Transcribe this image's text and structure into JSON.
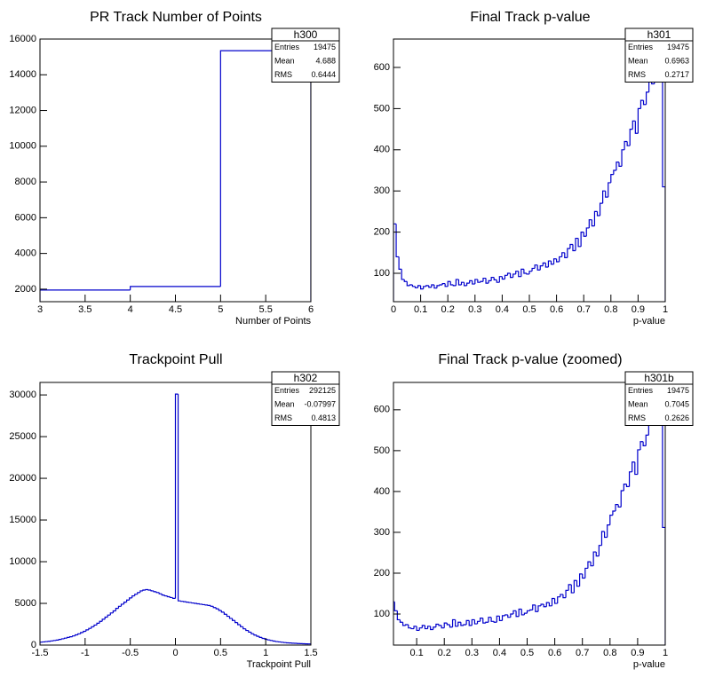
{
  "chart_data": [
    {
      "type": "histogram",
      "title": "PR Track Number of Points",
      "x_label": "Number of Points",
      "color": "#0000cc",
      "bins": [
        3,
        4,
        5,
        6
      ],
      "values": [
        1950,
        2150,
        15350
      ],
      "xlim": [
        3,
        6
      ],
      "xticks": [
        3,
        3.5,
        4,
        4.5,
        5,
        5.5,
        6
      ],
      "ylim": [
        1300,
        16000
      ],
      "yticks": [
        2000,
        4000,
        6000,
        8000,
        10000,
        12000,
        14000,
        16000
      ],
      "stats": {
        "title": "h300",
        "rows": [
          {
            "label": "Entries",
            "value": 19475
          },
          {
            "label": "Mean",
            "value": 4.688
          },
          {
            "label": "RMS",
            "value": 0.6444
          }
        ]
      }
    },
    {
      "type": "histogram",
      "title": "Final Track p-value",
      "x_label": "p-value",
      "color": "#0000cc",
      "bins": [
        0,
        0.01,
        0.02,
        0.03,
        0.04,
        0.05,
        0.06,
        0.07,
        0.08,
        0.09,
        0.1,
        0.11,
        0.12,
        0.13,
        0.14,
        0.15,
        0.16,
        0.17,
        0.18,
        0.19,
        0.2,
        0.21,
        0.22,
        0.23,
        0.24,
        0.25,
        0.26,
        0.27,
        0.28,
        0.29,
        0.3,
        0.31,
        0.32,
        0.33,
        0.34,
        0.35,
        0.36,
        0.37,
        0.38,
        0.39,
        0.4,
        0.41,
        0.42,
        0.43,
        0.44,
        0.45,
        0.46,
        0.47,
        0.48,
        0.49,
        0.5,
        0.51,
        0.52,
        0.53,
        0.54,
        0.55,
        0.56,
        0.57,
        0.58,
        0.59,
        0.6,
        0.61,
        0.62,
        0.63,
        0.64,
        0.65,
        0.66,
        0.67,
        0.68,
        0.69,
        0.7,
        0.71,
        0.72,
        0.73,
        0.74,
        0.75,
        0.76,
        0.77,
        0.78,
        0.79,
        0.8,
        0.81,
        0.82,
        0.83,
        0.84,
        0.85,
        0.86,
        0.87,
        0.88,
        0.89,
        0.9,
        0.91,
        0.92,
        0.93,
        0.94,
        0.95,
        0.96,
        0.97,
        0.98,
        0.99,
        1
      ],
      "values": [
        220,
        140,
        110,
        85,
        80,
        70,
        72,
        68,
        65,
        70,
        62,
        68,
        70,
        66,
        72,
        64,
        70,
        72,
        75,
        68,
        80,
        72,
        70,
        85,
        72,
        78,
        70,
        76,
        82,
        74,
        85,
        78,
        80,
        88,
        76,
        82,
        90,
        84,
        78,
        92,
        86,
        95,
        100,
        90,
        98,
        105,
        92,
        110,
        100,
        98,
        105,
        112,
        120,
        108,
        118,
        125,
        115,
        130,
        122,
        135,
        128,
        140,
        150,
        138,
        160,
        170,
        155,
        185,
        165,
        200,
        190,
        210,
        230,
        215,
        250,
        240,
        270,
        300,
        285,
        320,
        340,
        350,
        370,
        360,
        400,
        420,
        410,
        450,
        470,
        440,
        500,
        520,
        510,
        540,
        580,
        560,
        610,
        640,
        590,
        310
      ],
      "xlim": [
        0,
        1
      ],
      "xticks": [
        0,
        0.1,
        0.2,
        0.3,
        0.4,
        0.5,
        0.6,
        0.7,
        0.8,
        0.9,
        1
      ],
      "ylim": [
        31,
        669
      ],
      "yticks": [
        100,
        200,
        300,
        400,
        500,
        600
      ],
      "stats": {
        "title": "h301",
        "rows": [
          {
            "label": "Entries",
            "value": 19475
          },
          {
            "label": "Mean",
            "value": 0.6963
          },
          {
            "label": "RMS",
            "value": 0.2717
          }
        ]
      }
    },
    {
      "type": "histogram",
      "title": "Trackpoint Pull",
      "x_label": "Trackpoint Pull",
      "color": "#0000cc",
      "bins": [
        -1.5,
        -1.47,
        -1.44,
        -1.41,
        -1.38,
        -1.35,
        -1.32,
        -1.29,
        -1.26,
        -1.23,
        -1.2,
        -1.17,
        -1.14,
        -1.11,
        -1.08,
        -1.05,
        -1.02,
        -0.99,
        -0.96,
        -0.93,
        -0.9,
        -0.87,
        -0.84,
        -0.81,
        -0.78,
        -0.75,
        -0.72,
        -0.69,
        -0.66,
        -0.63,
        -0.6,
        -0.57,
        -0.54,
        -0.51,
        -0.48,
        -0.45,
        -0.42,
        -0.39,
        -0.36,
        -0.33,
        -0.3,
        -0.27,
        -0.24,
        -0.21,
        -0.18,
        -0.15,
        -0.12,
        -0.09,
        -0.06,
        -0.03,
        0,
        0.03,
        0.06,
        0.09,
        0.12,
        0.15,
        0.18,
        0.21,
        0.24,
        0.27,
        0.3,
        0.33,
        0.36,
        0.39,
        0.42,
        0.45,
        0.48,
        0.51,
        0.54,
        0.57,
        0.6,
        0.63,
        0.66,
        0.69,
        0.72,
        0.75,
        0.78,
        0.81,
        0.84,
        0.87,
        0.9,
        0.93,
        0.96,
        0.99,
        1.02,
        1.05,
        1.08,
        1.11,
        1.14,
        1.17,
        1.2,
        1.23,
        1.26,
        1.29,
        1.32,
        1.35,
        1.38,
        1.41,
        1.44,
        1.47,
        1.5
      ],
      "values": [
        350,
        380,
        420,
        450,
        500,
        550,
        600,
        680,
        750,
        830,
        920,
        1000,
        1100,
        1220,
        1350,
        1500,
        1650,
        1820,
        2000,
        2200,
        2400,
        2620,
        2850,
        3100,
        3350,
        3600,
        3850,
        4100,
        4400,
        4650,
        4900,
        5150,
        5400,
        5650,
        5900,
        6100,
        6300,
        6500,
        6600,
        6650,
        6600,
        6500,
        6400,
        6300,
        6150,
        6000,
        5900,
        5800,
        5700,
        5600,
        30100,
        5300,
        5250,
        5200,
        5150,
        5100,
        5050,
        5000,
        4950,
        4900,
        4850,
        4800,
        4750,
        4650,
        4500,
        4350,
        4150,
        3950,
        3700,
        3450,
        3200,
        2950,
        2700,
        2450,
        2200,
        1950,
        1750,
        1550,
        1350,
        1200,
        1050,
        920,
        800,
        700,
        620,
        550,
        480,
        420,
        380,
        340,
        300,
        270,
        250,
        230,
        210,
        190,
        170,
        160,
        150,
        140
      ],
      "xlim": [
        -1.5,
        1.5
      ],
      "xticks": [
        -1.5,
        -1,
        -0.5,
        0,
        0.5,
        1,
        1.5
      ],
      "ylim": [
        0,
        31500
      ],
      "yticks": [
        0,
        5000,
        10000,
        15000,
        20000,
        25000,
        30000
      ],
      "stats": {
        "title": "h302",
        "rows": [
          {
            "label": "Entries",
            "value": 292125
          },
          {
            "label": "Mean",
            "value": -0.07997
          },
          {
            "label": "RMS",
            "value": 0.4813
          }
        ]
      }
    },
    {
      "type": "histogram",
      "title": "Final Track p-value (zoomed)",
      "x_label": "p-value",
      "color": "#0000cc",
      "bins": [
        0.01,
        0.02,
        0.03,
        0.04,
        0.05,
        0.06,
        0.07,
        0.08,
        0.09,
        0.1,
        0.11,
        0.12,
        0.13,
        0.14,
        0.15,
        0.16,
        0.17,
        0.18,
        0.19,
        0.2,
        0.21,
        0.22,
        0.23,
        0.24,
        0.25,
        0.26,
        0.27,
        0.28,
        0.29,
        0.3,
        0.31,
        0.32,
        0.33,
        0.34,
        0.35,
        0.36,
        0.37,
        0.38,
        0.39,
        0.4,
        0.41,
        0.42,
        0.43,
        0.44,
        0.45,
        0.46,
        0.47,
        0.48,
        0.49,
        0.5,
        0.51,
        0.52,
        0.53,
        0.54,
        0.55,
        0.56,
        0.57,
        0.58,
        0.59,
        0.6,
        0.61,
        0.62,
        0.63,
        0.64,
        0.65,
        0.66,
        0.67,
        0.68,
        0.69,
        0.7,
        0.71,
        0.72,
        0.73,
        0.74,
        0.75,
        0.76,
        0.77,
        0.78,
        0.79,
        0.8,
        0.81,
        0.82,
        0.83,
        0.84,
        0.85,
        0.86,
        0.87,
        0.88,
        0.89,
        0.9,
        0.91,
        0.92,
        0.93,
        0.94,
        0.95,
        0.96,
        0.97,
        0.98,
        0.99,
        1
      ],
      "values": [
        130,
        108,
        86,
        80,
        72,
        74,
        66,
        64,
        70,
        60,
        66,
        72,
        64,
        70,
        62,
        68,
        75,
        72,
        66,
        78,
        74,
        68,
        86,
        70,
        80,
        72,
        74,
        84,
        72,
        86,
        76,
        82,
        90,
        78,
        80,
        92,
        82,
        80,
        95,
        84,
        96,
        98,
        92,
        100,
        108,
        94,
        112,
        98,
        102,
        108,
        110,
        122,
        106,
        120,
        124,
        118,
        128,
        120,
        138,
        126,
        142,
        148,
        140,
        158,
        172,
        152,
        182,
        168,
        198,
        188,
        212,
        228,
        218,
        252,
        242,
        268,
        302,
        288,
        318,
        342,
        352,
        368,
        362,
        402,
        418,
        412,
        448,
        472,
        442,
        502,
        522,
        512,
        538,
        578,
        562,
        612,
        636,
        592,
        312
      ],
      "xlim": [
        0.016,
        1
      ],
      "xticks": [
        0.1,
        0.2,
        0.3,
        0.4,
        0.5,
        0.6,
        0.7,
        0.8,
        0.9,
        1
      ],
      "ylim": [
        24,
        667
      ],
      "yticks": [
        100,
        200,
        300,
        400,
        500,
        600
      ],
      "stats": {
        "title": "h301b",
        "rows": [
          {
            "label": "Entries",
            "value": 19475
          },
          {
            "label": "Mean",
            "value": 0.7045
          },
          {
            "label": "RMS",
            "value": 0.2626
          }
        ]
      }
    }
  ]
}
